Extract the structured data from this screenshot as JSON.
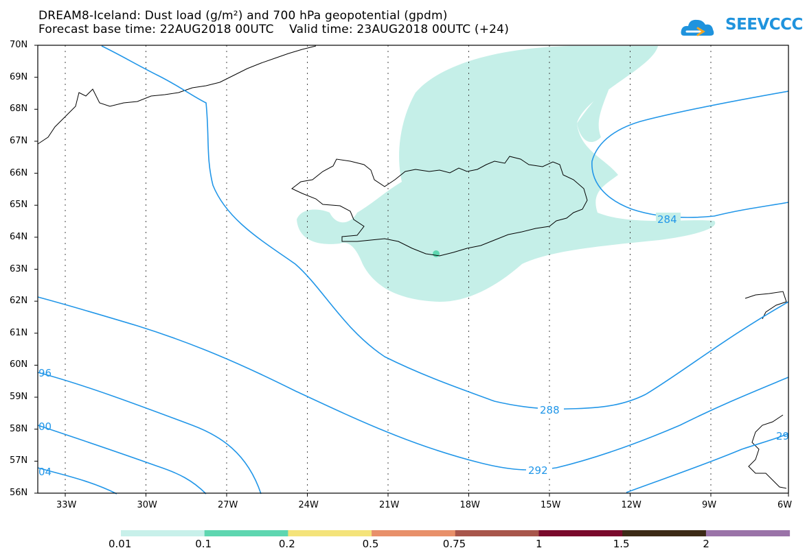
{
  "title_line1": "DREAM8-Iceland: Dust load (g/m²) and 700 hPa geopotential (gpdm)",
  "title_line2": "Forecast base time: 22AUG2018 00UTC    Valid time: 23AUG2018 00UTC (+24)",
  "logo_text": "SEEVCCC",
  "lat_labels": [
    "70N",
    "69N",
    "68N",
    "67N",
    "66N",
    "65N",
    "64N",
    "63N",
    "62N",
    "61N",
    "60N",
    "59N",
    "58N",
    "57N",
    "56N"
  ],
  "lon_labels": [
    "33W",
    "30W",
    "27W",
    "24W",
    "21W",
    "18W",
    "15W",
    "12W",
    "9W",
    "6W"
  ],
  "contour_labels": [
    "96",
    "00",
    "04",
    "288",
    "292",
    "284",
    "29"
  ],
  "legend": {
    "labels": [
      "0.01",
      "0.1",
      "0.2",
      "0.5",
      "0.75",
      "1",
      "1.5",
      "2"
    ],
    "colors": [
      "#c8f0ea",
      "#5ed6b0",
      "#f4e37a",
      "#e8906a",
      "#a8564b",
      "#7a0a2c",
      "#3c2a16",
      "#9a73a8"
    ]
  },
  "colors": {
    "dust": "#c5efe8",
    "contour": "#2196e8",
    "coast": "#000000",
    "grid": "#333333"
  }
}
